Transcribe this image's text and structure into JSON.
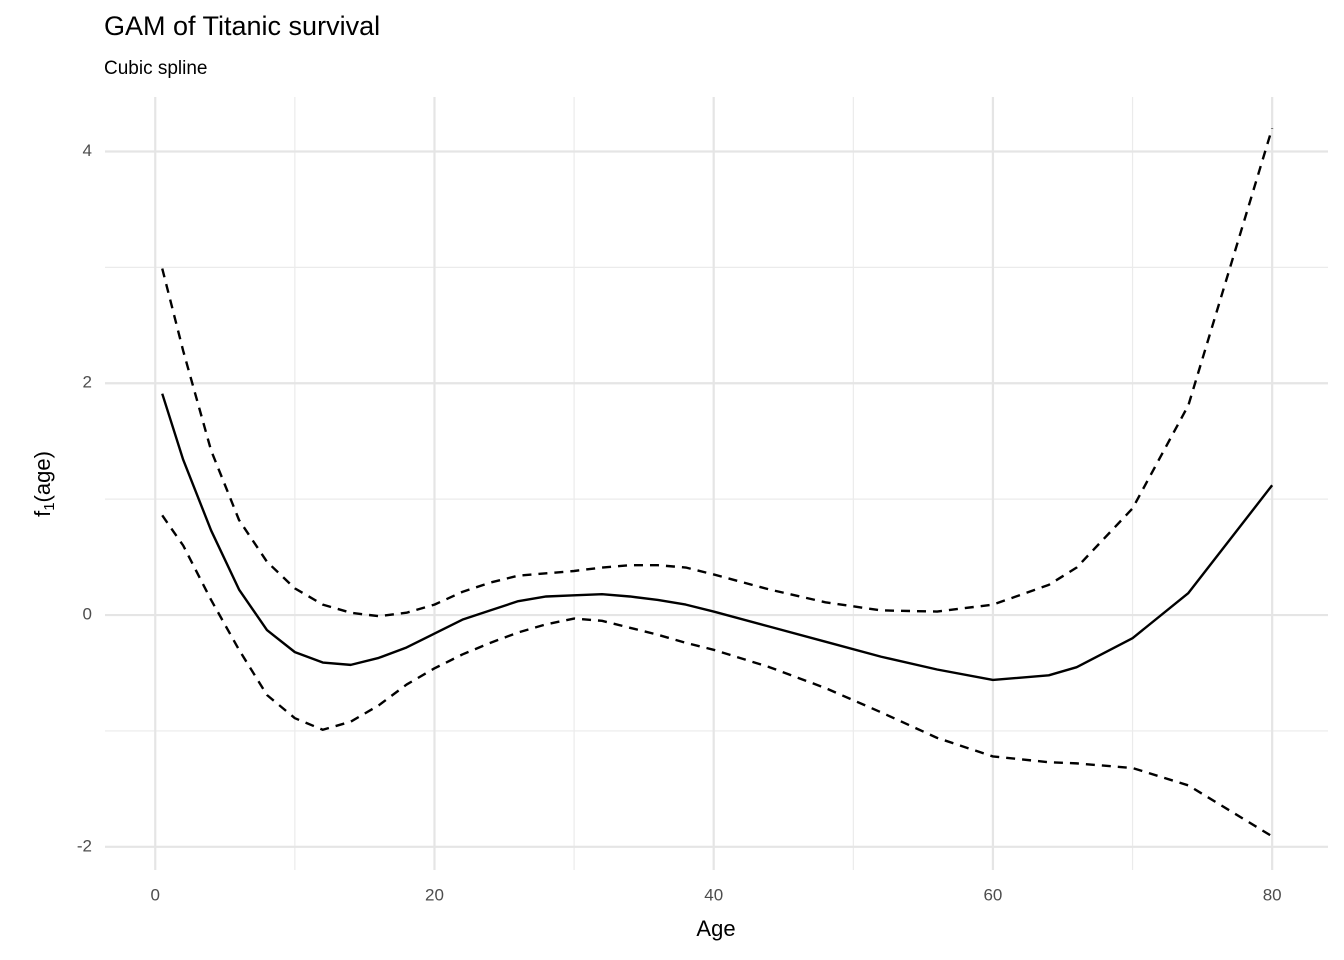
{
  "chart_data": {
    "type": "line",
    "title": "GAM of Titanic survival",
    "subtitle": "Cubic spline",
    "xlabel": "Age",
    "ylabel": [
      "f",
      "1",
      "(age)"
    ],
    "x": [
      0.5,
      2,
      4,
      6,
      8,
      10,
      12,
      14,
      16,
      18,
      20,
      22,
      24,
      26,
      28,
      30,
      32,
      34,
      36,
      38,
      40,
      44,
      48,
      52,
      56,
      60,
      64,
      66,
      70,
      74,
      80
    ],
    "series": [
      {
        "color": "#000000",
        "dash": "solid",
        "values": [
          1.91,
          1.34,
          0.73,
          0.22,
          -0.13,
          -0.32,
          -0.41,
          -0.43,
          -0.37,
          -0.28,
          -0.16,
          -0.04,
          0.04,
          0.12,
          0.16,
          0.17,
          0.18,
          0.16,
          0.13,
          0.09,
          0.03,
          -0.1,
          -0.23,
          -0.36,
          -0.47,
          -0.56,
          -0.52,
          -0.45,
          -0.2,
          0.19,
          1.12
        ]
      },
      {
        "color": "#000000",
        "dash": "dashed",
        "values": [
          2.99,
          2.28,
          1.42,
          0.82,
          0.46,
          0.23,
          0.09,
          0.02,
          -0.01,
          0.02,
          0.09,
          0.2,
          0.28,
          0.34,
          0.36,
          0.38,
          0.41,
          0.43,
          0.43,
          0.41,
          0.35,
          0.22,
          0.11,
          0.04,
          0.03,
          0.09,
          0.26,
          0.41,
          0.92,
          1.81,
          4.2
        ]
      },
      {
        "color": "#000000",
        "dash": "dashed",
        "values": [
          0.86,
          0.6,
          0.13,
          -0.3,
          -0.69,
          -0.89,
          -0.99,
          -0.92,
          -0.78,
          -0.6,
          -0.46,
          -0.34,
          -0.24,
          -0.15,
          -0.08,
          -0.03,
          -0.05,
          -0.11,
          -0.17,
          -0.24,
          -0.3,
          -0.45,
          -0.63,
          -0.84,
          -1.06,
          -1.22,
          -1.27,
          -1.28,
          -1.32,
          -1.47,
          -1.91
        ]
      }
    ],
    "xlim": [
      -3.6,
      84
    ],
    "ylim": [
      -2.2,
      4.47
    ],
    "xticks": [
      0,
      20,
      40,
      60,
      80
    ],
    "yticks": [
      -2,
      0,
      2,
      4
    ],
    "xminorticks": [
      10,
      30,
      50,
      70
    ],
    "yminorticks": [
      -1,
      1,
      3
    ],
    "grid": true
  }
}
